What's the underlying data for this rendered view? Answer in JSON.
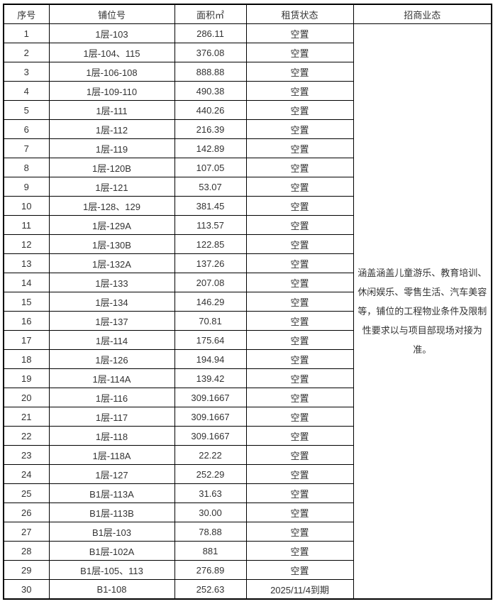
{
  "table": {
    "headers": [
      "序号",
      "铺位号",
      "面积㎡",
      "租赁状态",
      "招商业态"
    ],
    "business_note": "涵盖涵盖儿童游乐、教育培训、休闲娱乐、零售生活、汽车美容等，铺位的工程物业条件及限制性要求以与项目部现场对接为准。",
    "rows": [
      {
        "no": "1",
        "unit": "1层-103",
        "area": "286.11",
        "status": "空置"
      },
      {
        "no": "2",
        "unit": "1层-104、115",
        "area": "376.08",
        "status": "空置"
      },
      {
        "no": "3",
        "unit": "1层-106-108",
        "area": "888.88",
        "status": "空置"
      },
      {
        "no": "4",
        "unit": "1层-109-110",
        "area": "490.38",
        "status": "空置"
      },
      {
        "no": "5",
        "unit": "1层-111",
        "area": "440.26",
        "status": "空置"
      },
      {
        "no": "6",
        "unit": "1层-112",
        "area": "216.39",
        "status": "空置"
      },
      {
        "no": "7",
        "unit": "1层-119",
        "area": "142.89",
        "status": "空置"
      },
      {
        "no": "8",
        "unit": "1层-120B",
        "area": "107.05",
        "status": "空置"
      },
      {
        "no": "9",
        "unit": "1层-121",
        "area": "53.07",
        "status": "空置"
      },
      {
        "no": "10",
        "unit": "1层-128、129",
        "area": "381.45",
        "status": "空置"
      },
      {
        "no": "11",
        "unit": "1层-129A",
        "area": "113.57",
        "status": "空置"
      },
      {
        "no": "12",
        "unit": "1层-130B",
        "area": "122.85",
        "status": "空置"
      },
      {
        "no": "13",
        "unit": "1层-132A",
        "area": "137.26",
        "status": "空置"
      },
      {
        "no": "14",
        "unit": "1层-133",
        "area": "207.08",
        "status": "空置"
      },
      {
        "no": "15",
        "unit": "1层-134",
        "area": "146.29",
        "status": "空置"
      },
      {
        "no": "16",
        "unit": "1层-137",
        "area": "70.81",
        "status": "空置"
      },
      {
        "no": "17",
        "unit": "1层-114",
        "area": "175.64",
        "status": "空置"
      },
      {
        "no": "18",
        "unit": "1层-126",
        "area": "194.94",
        "status": "空置"
      },
      {
        "no": "19",
        "unit": "1层-114A",
        "area": "139.42",
        "status": "空置"
      },
      {
        "no": "20",
        "unit": "1层-116",
        "area": "309.1667",
        "status": "空置"
      },
      {
        "no": "21",
        "unit": "1层-117",
        "area": "309.1667",
        "status": "空置"
      },
      {
        "no": "22",
        "unit": "1层-118",
        "area": "309.1667",
        "status": "空置"
      },
      {
        "no": "23",
        "unit": "1层-118A",
        "area": "22.22",
        "status": "空置"
      },
      {
        "no": "24",
        "unit": "1层-127",
        "area": "252.29",
        "status": "空置"
      },
      {
        "no": "25",
        "unit": "B1层-113A",
        "area": "31.63",
        "status": "空置"
      },
      {
        "no": "26",
        "unit": "B1层-113B",
        "area": "30.00",
        "status": "空置"
      },
      {
        "no": "27",
        "unit": "B1层-103",
        "area": "78.88",
        "status": "空置"
      },
      {
        "no": "28",
        "unit": "B1层-102A",
        "area": "881",
        "status": "空置"
      },
      {
        "no": "29",
        "unit": "B1层-105、113",
        "area": "276.89",
        "status": "空置"
      },
      {
        "no": "30",
        "unit": "B1-108",
        "area": "252.63",
        "status": "2025/11/4到期"
      }
    ]
  }
}
